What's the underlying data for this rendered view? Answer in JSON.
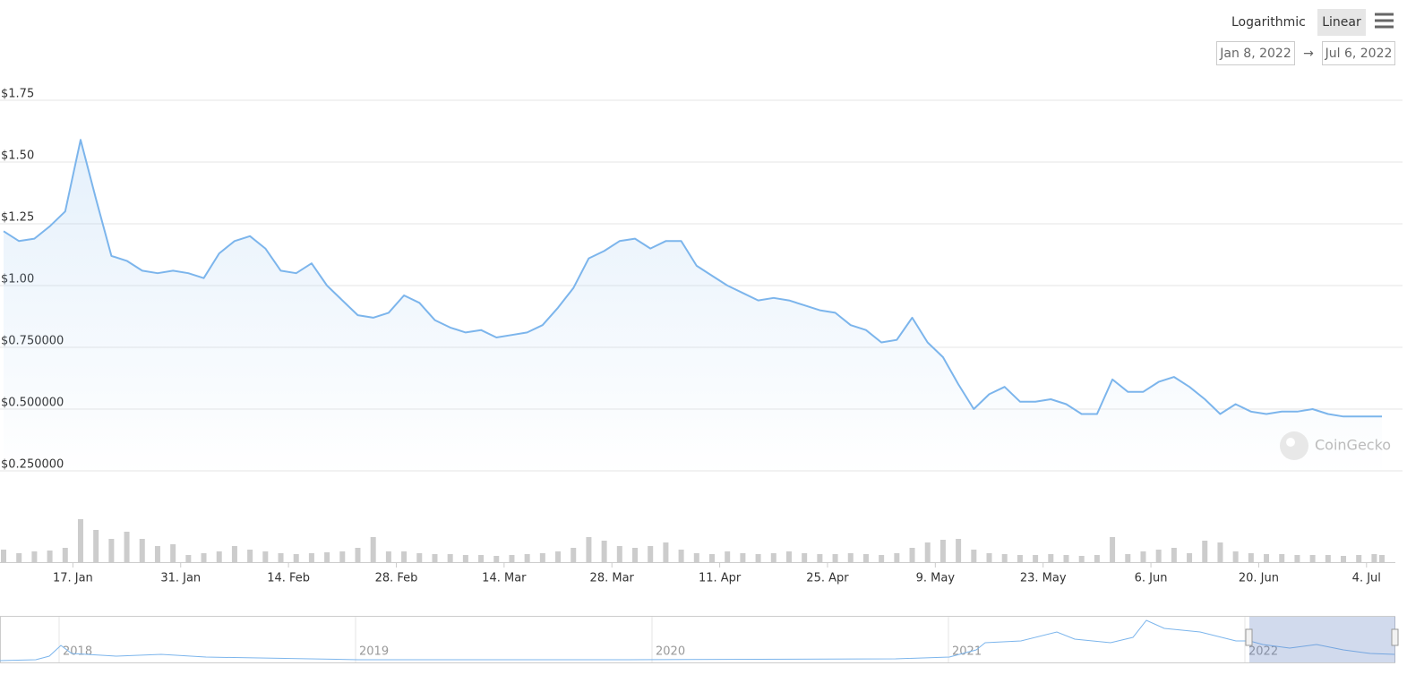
{
  "controls": {
    "scale_options": [
      "Logarithmic",
      "Linear"
    ],
    "active_scale": "Linear",
    "range_from": "Jan 8, 2022",
    "range_arrow": "→",
    "range_to": "Jul 6, 2022",
    "watermark": "CoinGecko"
  },
  "navigator": {
    "labels": [
      "2018",
      "2019",
      "2020",
      "2021",
      "2022"
    ]
  },
  "chart_data": [
    {
      "type": "line",
      "color": "#7cb5ec",
      "grid": true,
      "xlim": [
        "2022-01-08",
        "2022-07-06"
      ],
      "ylim": [
        0.25,
        1.75
      ],
      "yticks": [
        {
          "value": 0.25,
          "label": "$0.250000"
        },
        {
          "value": 0.5,
          "label": "$0.500000"
        },
        {
          "value": 0.75,
          "label": "$0.750000"
        },
        {
          "value": 1.0,
          "label": "$1.00"
        },
        {
          "value": 1.25,
          "label": "$1.25"
        },
        {
          "value": 1.5,
          "label": "$1.50"
        },
        {
          "value": 1.75,
          "label": "$1.75"
        }
      ],
      "xticks": [
        {
          "value": "2022-01-17",
          "label": "17. Jan"
        },
        {
          "value": "2022-01-31",
          "label": "31. Jan"
        },
        {
          "value": "2022-02-14",
          "label": "14. Feb"
        },
        {
          "value": "2022-02-28",
          "label": "28. Feb"
        },
        {
          "value": "2022-03-14",
          "label": "14. Mar"
        },
        {
          "value": "2022-03-28",
          "label": "28. Mar"
        },
        {
          "value": "2022-04-11",
          "label": "11. Apr"
        },
        {
          "value": "2022-04-25",
          "label": "25. Apr"
        },
        {
          "value": "2022-05-09",
          "label": "9. May"
        },
        {
          "value": "2022-05-23",
          "label": "23. May"
        },
        {
          "value": "2022-06-06",
          "label": "6. Jun"
        },
        {
          "value": "2022-06-20",
          "label": "20. Jun"
        },
        {
          "value": "2022-07-04",
          "label": "4. Jul"
        }
      ],
      "x": [
        "2022-01-08",
        "2022-01-10",
        "2022-01-12",
        "2022-01-14",
        "2022-01-16",
        "2022-01-18",
        "2022-01-20",
        "2022-01-22",
        "2022-01-24",
        "2022-01-26",
        "2022-01-28",
        "2022-01-30",
        "2022-02-01",
        "2022-02-03",
        "2022-02-05",
        "2022-02-07",
        "2022-02-09",
        "2022-02-11",
        "2022-02-13",
        "2022-02-15",
        "2022-02-17",
        "2022-02-19",
        "2022-02-21",
        "2022-02-23",
        "2022-02-25",
        "2022-02-27",
        "2022-03-01",
        "2022-03-03",
        "2022-03-05",
        "2022-03-07",
        "2022-03-09",
        "2022-03-11",
        "2022-03-13",
        "2022-03-15",
        "2022-03-17",
        "2022-03-19",
        "2022-03-21",
        "2022-03-23",
        "2022-03-25",
        "2022-03-27",
        "2022-03-29",
        "2022-03-31",
        "2022-04-02",
        "2022-04-04",
        "2022-04-06",
        "2022-04-08",
        "2022-04-10",
        "2022-04-12",
        "2022-04-14",
        "2022-04-16",
        "2022-04-18",
        "2022-04-20",
        "2022-04-22",
        "2022-04-24",
        "2022-04-26",
        "2022-04-28",
        "2022-04-30",
        "2022-05-02",
        "2022-05-04",
        "2022-05-06",
        "2022-05-08",
        "2022-05-10",
        "2022-05-12",
        "2022-05-14",
        "2022-05-16",
        "2022-05-18",
        "2022-05-20",
        "2022-05-22",
        "2022-05-24",
        "2022-05-26",
        "2022-05-28",
        "2022-05-30",
        "2022-06-01",
        "2022-06-03",
        "2022-06-05",
        "2022-06-07",
        "2022-06-09",
        "2022-06-11",
        "2022-06-13",
        "2022-06-15",
        "2022-06-17",
        "2022-06-19",
        "2022-06-21",
        "2022-06-23",
        "2022-06-25",
        "2022-06-27",
        "2022-06-29",
        "2022-07-01",
        "2022-07-03",
        "2022-07-05",
        "2022-07-06"
      ],
      "values": [
        1.22,
        1.18,
        1.19,
        1.24,
        1.3,
        1.59,
        1.35,
        1.12,
        1.1,
        1.06,
        1.05,
        1.06,
        1.05,
        1.03,
        1.13,
        1.18,
        1.2,
        1.15,
        1.06,
        1.05,
        1.09,
        1.0,
        0.94,
        0.88,
        0.87,
        0.89,
        0.96,
        0.93,
        0.86,
        0.83,
        0.81,
        0.82,
        0.79,
        0.8,
        0.81,
        0.84,
        0.91,
        0.99,
        1.11,
        1.14,
        1.18,
        1.19,
        1.15,
        1.18,
        1.18,
        1.08,
        1.04,
        1.0,
        0.97,
        0.94,
        0.95,
        0.94,
        0.92,
        0.9,
        0.89,
        0.84,
        0.82,
        0.77,
        0.78,
        0.87,
        0.77,
        0.71,
        0.6,
        0.5,
        0.56,
        0.59,
        0.53,
        0.53,
        0.54,
        0.52,
        0.48,
        0.48,
        0.62,
        0.57,
        0.57,
        0.61,
        0.63,
        0.59,
        0.54,
        0.48,
        0.52,
        0.49,
        0.48,
        0.49,
        0.49,
        0.5,
        0.48,
        0.47,
        0.47,
        0.47,
        0.47
      ]
    },
    {
      "type": "bar",
      "color": "#cccccc",
      "ylim": [
        0,
        60
      ],
      "x": [
        "2022-01-08",
        "2022-01-10",
        "2022-01-12",
        "2022-01-14",
        "2022-01-16",
        "2022-01-18",
        "2022-01-20",
        "2022-01-22",
        "2022-01-24",
        "2022-01-26",
        "2022-01-28",
        "2022-01-30",
        "2022-02-01",
        "2022-02-03",
        "2022-02-05",
        "2022-02-07",
        "2022-02-09",
        "2022-02-11",
        "2022-02-13",
        "2022-02-15",
        "2022-02-17",
        "2022-02-19",
        "2022-02-21",
        "2022-02-23",
        "2022-02-25",
        "2022-02-27",
        "2022-03-01",
        "2022-03-03",
        "2022-03-05",
        "2022-03-07",
        "2022-03-09",
        "2022-03-11",
        "2022-03-13",
        "2022-03-15",
        "2022-03-17",
        "2022-03-19",
        "2022-03-21",
        "2022-03-23",
        "2022-03-25",
        "2022-03-27",
        "2022-03-29",
        "2022-03-31",
        "2022-04-02",
        "2022-04-04",
        "2022-04-06",
        "2022-04-08",
        "2022-04-10",
        "2022-04-12",
        "2022-04-14",
        "2022-04-16",
        "2022-04-18",
        "2022-04-20",
        "2022-04-22",
        "2022-04-24",
        "2022-04-26",
        "2022-04-28",
        "2022-04-30",
        "2022-05-02",
        "2022-05-04",
        "2022-05-06",
        "2022-05-08",
        "2022-05-10",
        "2022-05-12",
        "2022-05-14",
        "2022-05-16",
        "2022-05-18",
        "2022-05-20",
        "2022-05-22",
        "2022-05-24",
        "2022-05-26",
        "2022-05-28",
        "2022-05-30",
        "2022-06-01",
        "2022-06-03",
        "2022-06-05",
        "2022-06-07",
        "2022-06-09",
        "2022-06-11",
        "2022-06-13",
        "2022-06-15",
        "2022-06-17",
        "2022-06-19",
        "2022-06-21",
        "2022-06-23",
        "2022-06-25",
        "2022-06-27",
        "2022-06-29",
        "2022-07-01",
        "2022-07-03",
        "2022-07-05",
        "2022-07-06"
      ],
      "values": [
        14,
        10,
        12,
        13,
        16,
        48,
        36,
        26,
        34,
        26,
        18,
        20,
        8,
        10,
        12,
        18,
        14,
        12,
        10,
        9,
        10,
        11,
        12,
        16,
        28,
        12,
        12,
        10,
        9,
        9,
        8,
        8,
        7,
        8,
        9,
        10,
        12,
        16,
        28,
        24,
        18,
        16,
        18,
        22,
        14,
        10,
        9,
        12,
        10,
        9,
        10,
        12,
        10,
        9,
        9,
        10,
        9,
        8,
        10,
        16,
        22,
        25,
        26,
        14,
        10,
        9,
        8,
        8,
        9,
        8,
        7,
        8,
        28,
        9,
        12,
        14,
        16,
        10,
        24,
        22,
        12,
        10,
        9,
        9,
        8,
        8,
        8,
        7,
        8,
        9,
        8
      ]
    }
  ]
}
